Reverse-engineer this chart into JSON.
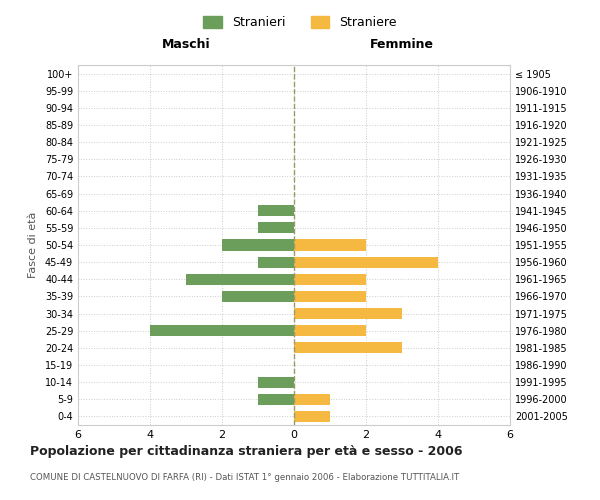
{
  "age_groups": [
    "0-4",
    "5-9",
    "10-14",
    "15-19",
    "20-24",
    "25-29",
    "30-34",
    "35-39",
    "40-44",
    "45-49",
    "50-54",
    "55-59",
    "60-64",
    "65-69",
    "70-74",
    "75-79",
    "80-84",
    "85-89",
    "90-94",
    "95-99",
    "100+"
  ],
  "birth_years": [
    "2001-2005",
    "1996-2000",
    "1991-1995",
    "1986-1990",
    "1981-1985",
    "1976-1980",
    "1971-1975",
    "1966-1970",
    "1961-1965",
    "1956-1960",
    "1951-1955",
    "1946-1950",
    "1941-1945",
    "1936-1940",
    "1931-1935",
    "1926-1930",
    "1921-1925",
    "1916-1920",
    "1911-1915",
    "1906-1910",
    "≤ 1905"
  ],
  "maschi": [
    0,
    1,
    1,
    0,
    0,
    4,
    0,
    2,
    3,
    1,
    2,
    1,
    1,
    0,
    0,
    0,
    0,
    0,
    0,
    0,
    0
  ],
  "femmine": [
    1,
    1,
    0,
    0,
    3,
    2,
    3,
    2,
    2,
    4,
    2,
    0,
    0,
    0,
    0,
    0,
    0,
    0,
    0,
    0,
    0
  ],
  "color_maschi": "#6a9e5a",
  "color_femmine": "#f5b942",
  "title": "Popolazione per cittadinanza straniera per età e sesso - 2006",
  "subtitle": "COMUNE DI CASTELNUOVO DI FARFA (RI) - Dati ISTAT 1° gennaio 2006 - Elaborazione TUTTITALIA.IT",
  "xlabel_left": "Maschi",
  "xlabel_right": "Femmine",
  "ylabel_left": "Fasce di età",
  "legend_maschi": "Stranieri",
  "legend_femmine": "Straniere",
  "xlim": 6,
  "background_color": "#ffffff",
  "grid_color": "#cccccc"
}
